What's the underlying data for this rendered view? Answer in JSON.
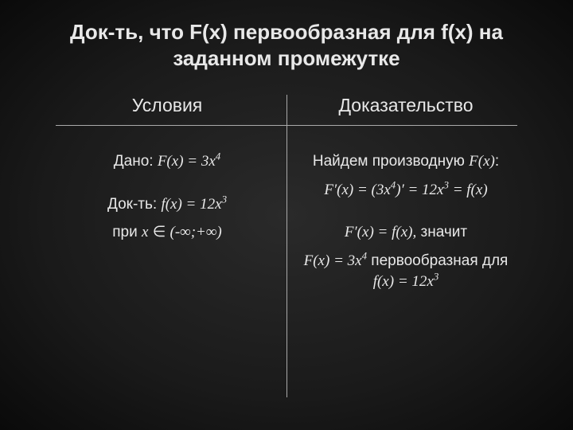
{
  "colors": {
    "background_center": "#2a2a2a",
    "background_edge": "#0a0a0a",
    "text": "#e8e8e8",
    "line": "#aaaaaa"
  },
  "typography": {
    "title_fontsize": 26,
    "header_fontsize": 23,
    "body_fontsize": 19,
    "title_weight": "bold",
    "math_font": "Times New Roman"
  },
  "title": "Док-ть, что F(x) первообразная для f(x) на заданном промежутке",
  "left": {
    "header": "Условия",
    "given_label": "Дано: ",
    "given_formula": "F(x) = 3x⁴",
    "prove_label": "Док-ть: ",
    "prove_formula": "f(x) = 12x³",
    "interval_label": "при ",
    "interval_var": "x",
    "interval_symbol": " ∈ ",
    "interval_value": "(-∞;+∞)"
  },
  "right": {
    "header": "Доказательство",
    "line1_text": "Найдем производную ",
    "line1_fx": "F(x)",
    "line1_colon": ":",
    "line2_formula": "F′(x) = (3x⁴)′ = 12x³ = f(x)",
    "line3_formula": "F′(x) = f(x),",
    "line3_text": " значит",
    "line4_formula1": "F(x) = 3x⁴",
    "line4_text1": " первообразная для  ",
    "line4_formula2": "f(x) = 12x³"
  }
}
